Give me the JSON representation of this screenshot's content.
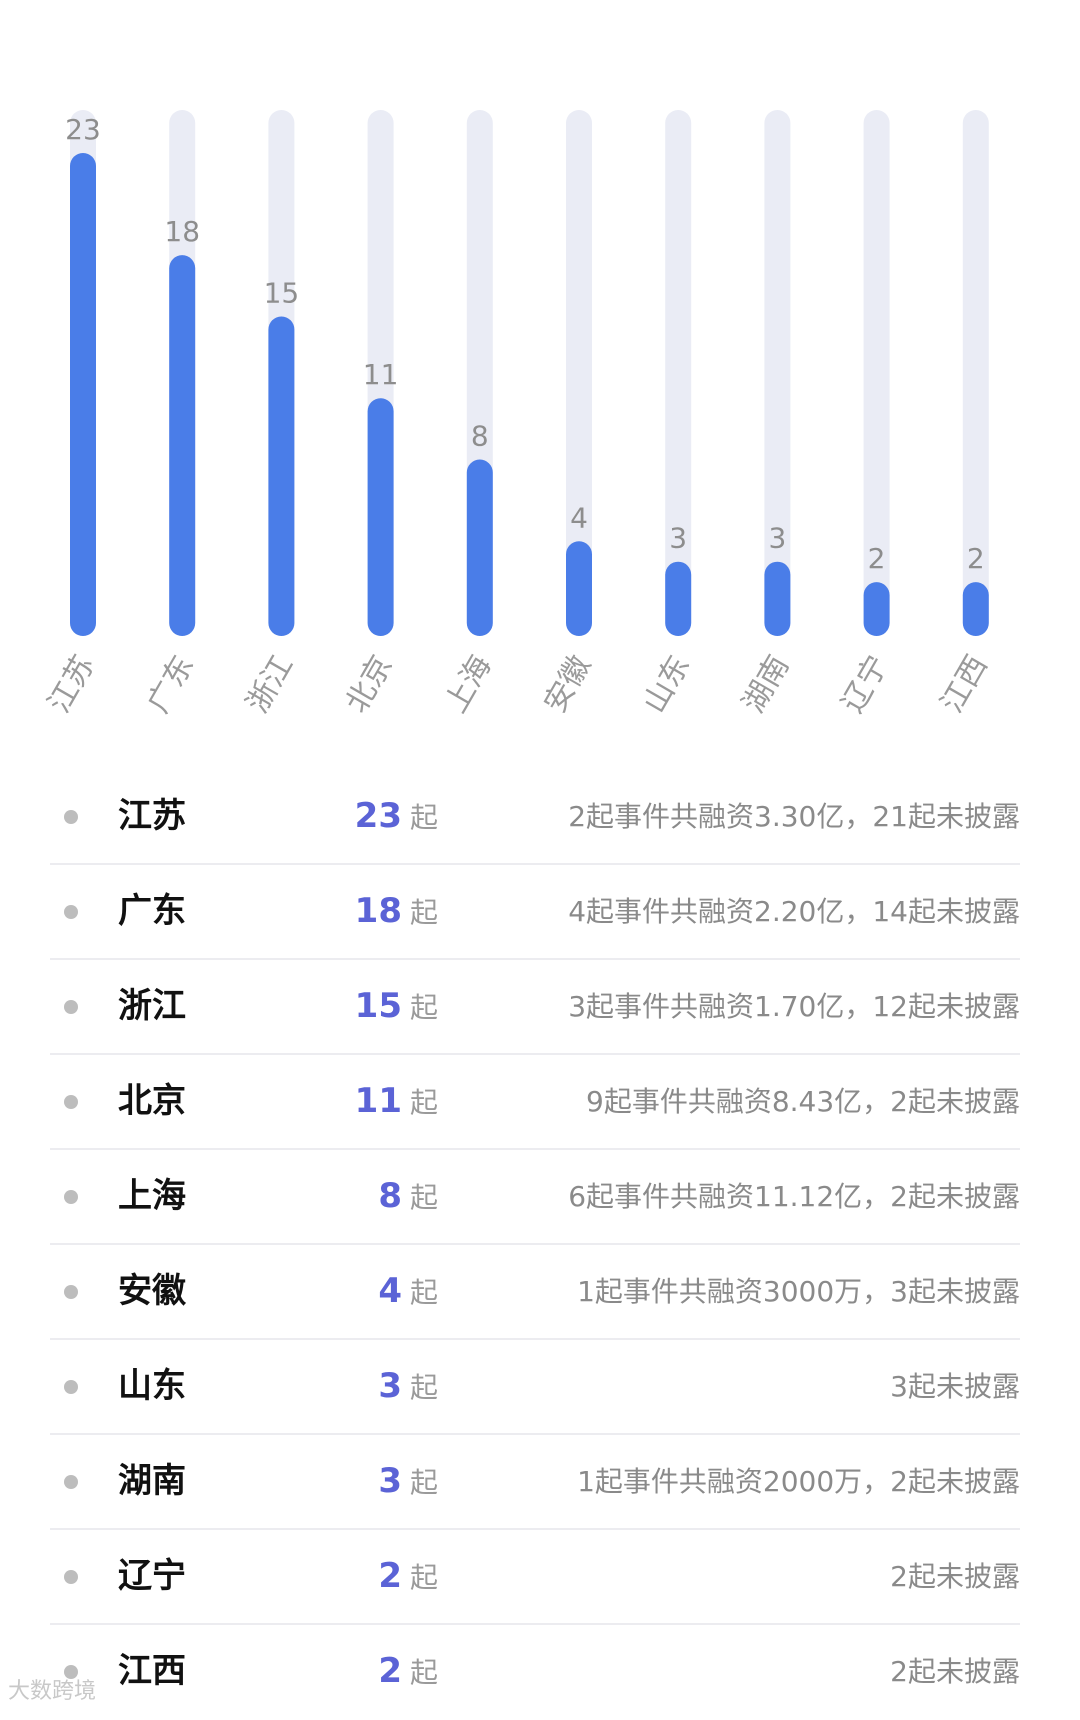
{
  "chart_data": {
    "type": "bar",
    "categories": [
      "江苏",
      "广东",
      "浙江",
      "北京",
      "上海",
      "安徽",
      "山东",
      "湖南",
      "辽宁",
      "江西"
    ],
    "values": [
      23,
      18,
      15,
      11,
      8,
      4,
      3,
      3,
      2,
      2
    ],
    "ylim": [
      0,
      23
    ],
    "grid": false,
    "colors": {
      "bar": "#4a7de8",
      "track": "#eaecf5"
    }
  },
  "list": [
    {
      "province": "江苏",
      "count": "23",
      "unit": "起",
      "desc": "2起事件共融资3.30亿，21起未披露"
    },
    {
      "province": "广东",
      "count": "18",
      "unit": "起",
      "desc": "4起事件共融资2.20亿，14起未披露"
    },
    {
      "province": "浙江",
      "count": "15",
      "unit": "起",
      "desc": "3起事件共融资1.70亿，12起未披露"
    },
    {
      "province": "北京",
      "count": "11",
      "unit": "起",
      "desc": "9起事件共融资8.43亿，2起未披露"
    },
    {
      "province": "上海",
      "count": "8",
      "unit": "起",
      "desc": "6起事件共融资11.12亿，2起未披露"
    },
    {
      "province": "安徽",
      "count": "4",
      "unit": "起",
      "desc": "1起事件共融资3000万，3起未披露"
    },
    {
      "province": "山东",
      "count": "3",
      "unit": "起",
      "desc": "3起未披露"
    },
    {
      "province": "湖南",
      "count": "3",
      "unit": "起",
      "desc": "1起事件共融资2000万，2起未披露"
    },
    {
      "province": "辽宁",
      "count": "2",
      "unit": "起",
      "desc": "2起未披露"
    },
    {
      "province": "江西",
      "count": "2",
      "unit": "起",
      "desc": "2起未披露"
    }
  ],
  "watermark": "大数跨境"
}
